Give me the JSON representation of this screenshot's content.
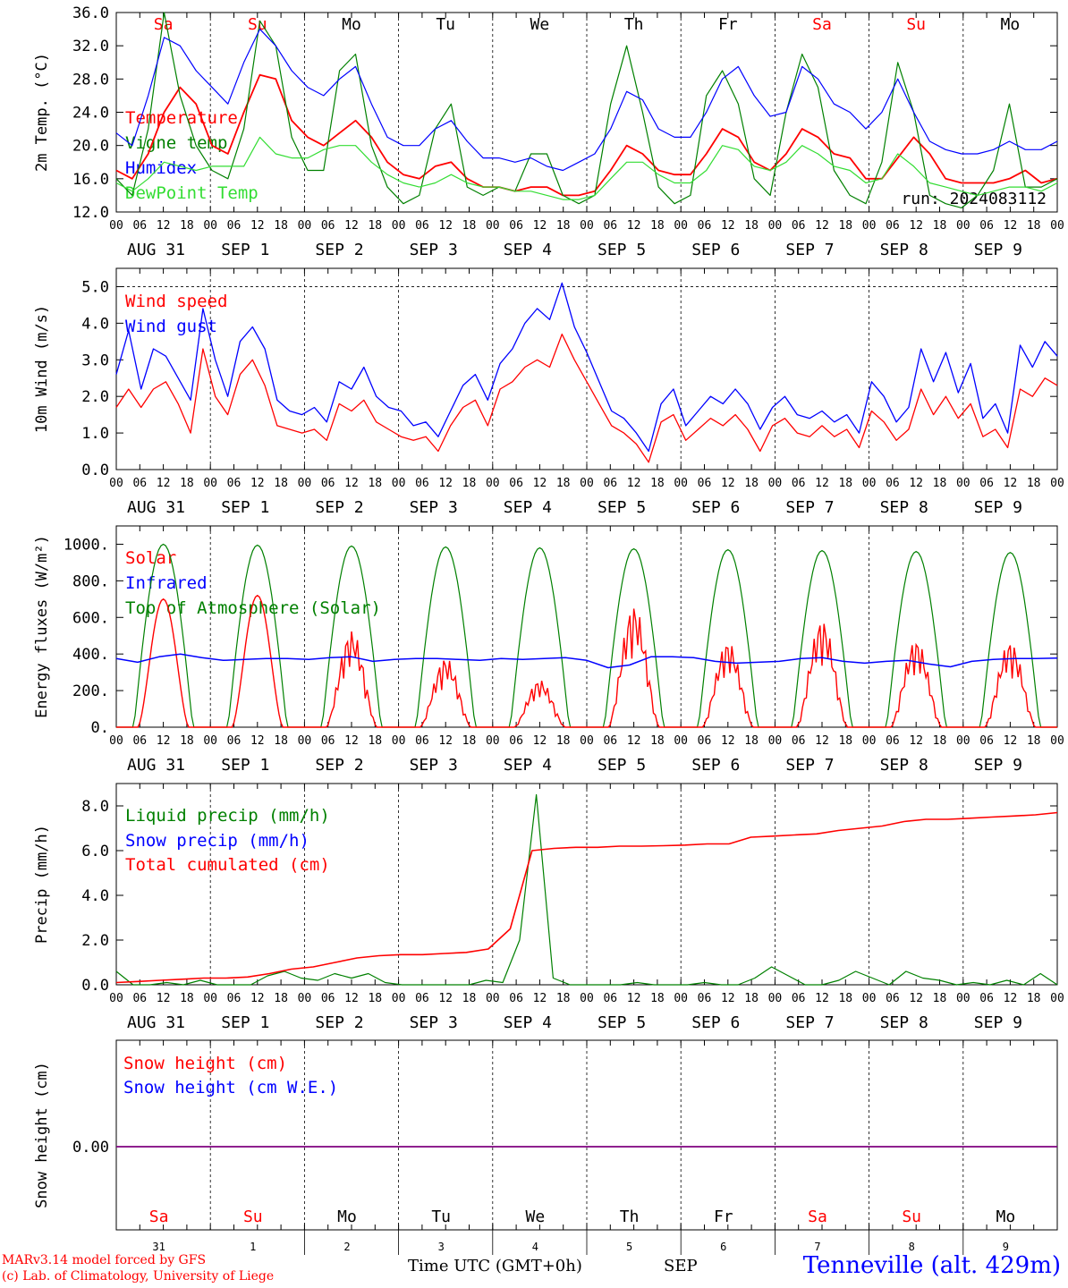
{
  "run_label": "run: 2024083112",
  "footer": {
    "model": "MARv3.14 model forced by GFS",
    "credit": "(c) Lab. of Climatology, University of Liege",
    "axis_title": "Time UTC (GMT+0h)",
    "month": "SEP",
    "station": "Tenneville (alt. 429m)"
  },
  "time_axis": {
    "hour_ticks": [
      "00",
      "06",
      "12",
      "18"
    ],
    "date_labels": [
      "AUG 31",
      "SEP  1",
      "SEP  2",
      "SEP  3",
      "SEP  4",
      "SEP  5",
      "SEP  6",
      "SEP  7",
      "SEP  8",
      "SEP  9"
    ],
    "weekdays": [
      "Sa",
      "Su",
      "Mo",
      "Tu",
      "We",
      "Th",
      "Fr",
      "Sa",
      "Su",
      "Mo"
    ],
    "weekend_flags": [
      true,
      true,
      false,
      false,
      false,
      false,
      false,
      true,
      true,
      false
    ],
    "day_numbers": [
      "31",
      "1",
      "2",
      "3",
      "4",
      "5",
      "6",
      "7",
      "8",
      "9"
    ]
  },
  "colors": {
    "red": "#ff0000",
    "green": "#008000",
    "blue": "#0000ff",
    "lightgreen": "#33dd33",
    "purple": "#7f007f",
    "weekend": "#ff0000"
  },
  "chart_data": [
    {
      "type": "line",
      "ylabel": "2m Temp. (°C)",
      "ylim": [
        12,
        36
      ],
      "yticks": [
        "12.0",
        "16.0",
        "20.0",
        "24.0",
        "28.0",
        "32.0",
        "36.0"
      ],
      "x_start": "2024-08-31 00:00 UTC",
      "x_step_hours": 6,
      "series": [
        {
          "name": "Temperature",
          "color": "#ff0000",
          "values": [
            17,
            16,
            19,
            24,
            27,
            25,
            20,
            19,
            24,
            28.5,
            28,
            23,
            21,
            20,
            21.5,
            23,
            21,
            18,
            16.5,
            16,
            17.5,
            18,
            16,
            15,
            15,
            14.5,
            15,
            15,
            14,
            14,
            14.5,
            17,
            20,
            19,
            17,
            16.5,
            16.5,
            19,
            22,
            21,
            18,
            17,
            19,
            22,
            21,
            19,
            18.5,
            16,
            16,
            18.5,
            21,
            19,
            16,
            15.5,
            15.5,
            15.5,
            16,
            17,
            15.5,
            16
          ]
        },
        {
          "name": "Vigne temp",
          "color": "#008000",
          "values": [
            16,
            14,
            22,
            36,
            26,
            20,
            17,
            16,
            22,
            35,
            32,
            21,
            17,
            17,
            29,
            31,
            20,
            15,
            13,
            14,
            22,
            25,
            15,
            14,
            15,
            14.5,
            19,
            19,
            14,
            13,
            14,
            25,
            32,
            24,
            15,
            13,
            14,
            26,
            29,
            25,
            16,
            14,
            24,
            31,
            27,
            17,
            14,
            13,
            18,
            30,
            24,
            14,
            13,
            12.5,
            14,
            17,
            25,
            15,
            15,
            16
          ]
        },
        {
          "name": "Humidex",
          "color": "#0000ff",
          "values": [
            21.5,
            20,
            26,
            33,
            32,
            29,
            27,
            25,
            30,
            34,
            32,
            29,
            27,
            26,
            28,
            29.5,
            25,
            21,
            20,
            20,
            22,
            23,
            20.5,
            18.5,
            18.5,
            18,
            18.5,
            17.5,
            17,
            18,
            19,
            22,
            26.5,
            25.5,
            22,
            21,
            21,
            24,
            28,
            29.5,
            26,
            23.5,
            24,
            29.5,
            28,
            25,
            24,
            22,
            24,
            28,
            24,
            20.5,
            19.5,
            19,
            19,
            19.5,
            20.5,
            19.5,
            19.5,
            20.5
          ]
        },
        {
          "name": "DewPoint Temp",
          "color": "#33dd33",
          "values": [
            15.5,
            14.5,
            16,
            18,
            17.5,
            17,
            17.5,
            17.5,
            17.5,
            21,
            19,
            18.5,
            18.5,
            19.5,
            20,
            20,
            18,
            16.5,
            15.5,
            15,
            15.5,
            16.5,
            15.5,
            15,
            15,
            14.5,
            14.5,
            14,
            13.5,
            13.5,
            14,
            16,
            18,
            18,
            16.5,
            15.5,
            15.5,
            17,
            20,
            19.5,
            17.5,
            17,
            18,
            20,
            19,
            17.5,
            17,
            15.5,
            16,
            19,
            17.5,
            15.5,
            15,
            14.5,
            14,
            14.5,
            15,
            15,
            14.5,
            15.5
          ]
        }
      ]
    },
    {
      "type": "line",
      "ylabel": "10m Wind (m/s)",
      "ylim": [
        0,
        5.5
      ],
      "yticks": [
        "0.0",
        "1.0",
        "2.0",
        "3.0",
        "4.0",
        "5.0"
      ],
      "dashed_line": 5.0,
      "x_start": "2024-08-31 00:00 UTC",
      "x_step_hours": 6,
      "series": [
        {
          "name": "Wind speed",
          "color": "#ff0000",
          "values": [
            1.7,
            2.2,
            1.7,
            2.2,
            2.4,
            1.8,
            1.0,
            3.3,
            2.0,
            1.5,
            2.6,
            3.0,
            2.3,
            1.2,
            1.1,
            1.0,
            1.1,
            0.8,
            1.8,
            1.6,
            1.9,
            1.3,
            1.1,
            0.9,
            0.8,
            0.9,
            0.5,
            1.2,
            1.7,
            1.9,
            1.2,
            2.2,
            2.4,
            2.8,
            3.0,
            2.8,
            3.7,
            3.0,
            2.4,
            1.8,
            1.2,
            1.0,
            0.7,
            0.2,
            1.3,
            1.5,
            0.8,
            1.1,
            1.4,
            1.2,
            1.5,
            1.1,
            0.5,
            1.2,
            1.4,
            1.0,
            0.9,
            1.2,
            0.9,
            1.1,
            0.6,
            1.6,
            1.3,
            0.8,
            1.1,
            2.2,
            1.5,
            2.0,
            1.4,
            1.8,
            0.9,
            1.1,
            0.6,
            2.2,
            2.0,
            2.5,
            2.3
          ]
        },
        {
          "name": "Wind gust",
          "color": "#0000ff",
          "values": [
            2.6,
            3.8,
            2.2,
            3.3,
            3.1,
            2.5,
            1.9,
            4.4,
            3.0,
            2.0,
            3.5,
            3.9,
            3.3,
            1.9,
            1.6,
            1.5,
            1.7,
            1.3,
            2.4,
            2.2,
            2.8,
            2.0,
            1.7,
            1.6,
            1.2,
            1.3,
            0.9,
            1.6,
            2.3,
            2.6,
            1.9,
            2.9,
            3.3,
            4.0,
            4.4,
            4.1,
            5.1,
            3.9,
            3.2,
            2.4,
            1.6,
            1.4,
            1.0,
            0.5,
            1.8,
            2.2,
            1.2,
            1.6,
            2.0,
            1.8,
            2.2,
            1.8,
            1.1,
            1.7,
            2.0,
            1.5,
            1.4,
            1.6,
            1.3,
            1.5,
            1.0,
            2.4,
            2.0,
            1.3,
            1.7,
            3.3,
            2.4,
            3.2,
            2.1,
            2.9,
            1.4,
            1.8,
            1.0,
            3.4,
            2.8,
            3.5,
            3.1
          ]
        }
      ]
    },
    {
      "type": "line",
      "ylabel": "Energy fluxes (W/m²)",
      "ylim": [
        0,
        1100
      ],
      "yticks": [
        "0.",
        "200.",
        "400.",
        "600.",
        "800.",
        "1000."
      ],
      "x_start": "2024-08-31 00:00 UTC",
      "x_step_hours": 6,
      "series": [
        {
          "name": "Solar",
          "color": "#ff0000",
          "day_peaks": [
            700,
            720,
            530,
            380,
            260,
            670,
            470,
            590,
            480,
            470
          ]
        },
        {
          "name": "Infrared",
          "color": "#0000ff",
          "values": [
            375,
            355,
            385,
            400,
            380,
            365,
            370,
            375,
            375,
            370,
            380,
            385,
            360,
            370,
            375,
            375,
            370,
            365,
            375,
            370,
            375,
            380,
            365,
            325,
            340,
            385,
            385,
            380,
            360,
            350,
            355,
            360,
            375,
            380,
            360,
            350,
            360,
            365,
            345,
            330,
            360,
            370,
            375,
            375,
            378
          ]
        },
        {
          "name": "Top of Atmosphere (Solar)",
          "color": "#008000",
          "day_peaks": [
            1000,
            995,
            990,
            985,
            980,
            975,
            970,
            965,
            960,
            955
          ]
        }
      ]
    },
    {
      "type": "line",
      "ylabel": "Precip (mm/h)",
      "ylim": [
        0,
        9
      ],
      "yticks": [
        "0.0",
        "2.0",
        "4.0",
        "6.0",
        "8.0"
      ],
      "x_start": "2024-08-31 00:00 UTC",
      "x_step_hours": 6,
      "series": [
        {
          "name": "Liquid precip (mm/h)",
          "color": "#008000",
          "values": [
            0.6,
            0,
            0,
            0.1,
            0,
            0.2,
            0,
            0,
            0,
            0.4,
            0.6,
            0.3,
            0.2,
            0.5,
            0.3,
            0.5,
            0.1,
            0,
            0,
            0,
            0,
            0,
            0.2,
            0.1,
            2,
            8.5,
            0.3,
            0,
            0,
            0,
            0,
            0.1,
            0,
            0,
            0,
            0.1,
            0,
            0,
            0.3,
            0.8,
            0.4,
            0,
            0,
            0.2,
            0.6,
            0.3,
            0,
            0.6,
            0.3,
            0.2,
            0,
            0.1,
            0,
            0.2,
            0,
            0.5,
            0
          ]
        },
        {
          "name": "Snow precip (mm/h)",
          "color": "#0000ff",
          "values": [
            0
          ]
        },
        {
          "name": "Total cumulated (cm)",
          "color": "#ff0000",
          "values": [
            0.1,
            0.15,
            0.2,
            0.25,
            0.3,
            0.3,
            0.35,
            0.5,
            0.7,
            0.8,
            1.0,
            1.2,
            1.3,
            1.35,
            1.35,
            1.4,
            1.45,
            1.6,
            2.5,
            6.0,
            6.1,
            6.15,
            6.15,
            6.2,
            6.2,
            6.22,
            6.25,
            6.3,
            6.3,
            6.6,
            6.65,
            6.7,
            6.75,
            6.9,
            7.0,
            7.1,
            7.3,
            7.4,
            7.4,
            7.45,
            7.5,
            7.55,
            7.6,
            7.7
          ]
        }
      ]
    },
    {
      "type": "line",
      "ylabel": "Snow height (cm)",
      "yticks": [
        "0.00"
      ],
      "series": [
        {
          "name": "Snow height (cm)",
          "color": "#ff0000",
          "values": [
            0
          ]
        },
        {
          "name": "Snow height (cm W.E.)",
          "color": "#0000ff",
          "values": [
            0
          ]
        }
      ]
    }
  ]
}
